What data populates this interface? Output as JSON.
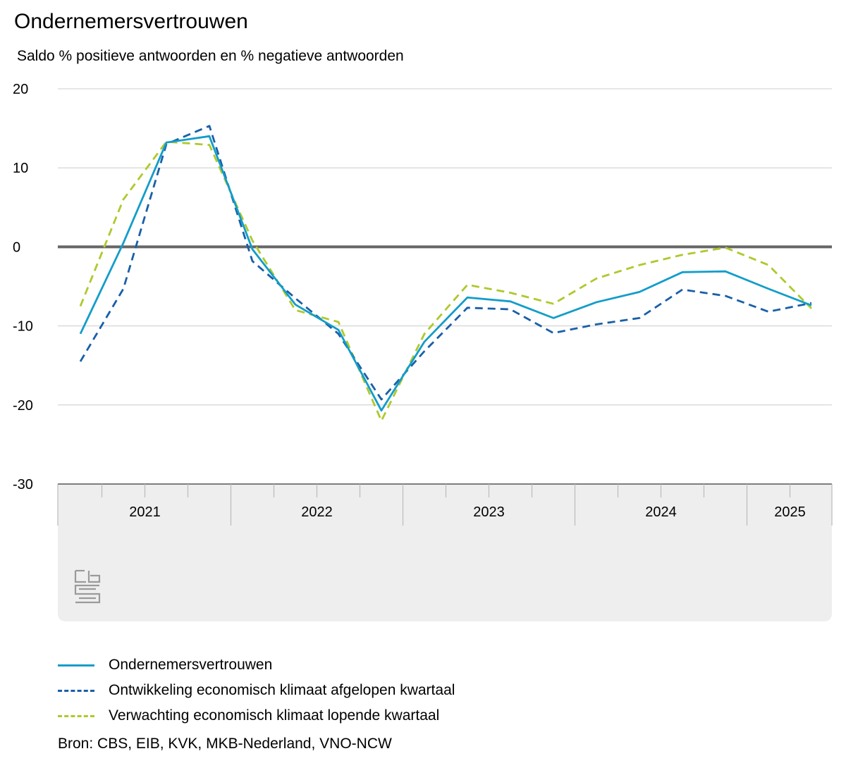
{
  "header": {
    "title": "Ondernemersvertrouwen",
    "subtitle": "Saldo % positieve antwoorden en % negatieve antwoorden"
  },
  "source": "Bron: CBS, EIB, KVK, MKB-Nederland, VNO-NCW",
  "logo": {
    "icon": "cbs-logo-icon"
  },
  "colors": {
    "series": [
      "#139dc9",
      "#1a5fa8",
      "#aec92c"
    ],
    "zero_line": "#666666",
    "grid": "#cccccc",
    "axis_band": "#eeeeee"
  },
  "chart_data": {
    "type": "line",
    "title": "Ondernemersvertrouwen",
    "subtitle": "Saldo % positieve antwoorden en % negatieve antwoorden",
    "xlabel": "",
    "ylabel": "",
    "ylim": [
      -30,
      20
    ],
    "yticks": [
      "20",
      "10",
      "0",
      "-10",
      "-20",
      "-30"
    ],
    "ytick_values": [
      20,
      10,
      0,
      -10,
      -20,
      -30
    ],
    "grid": true,
    "legend_position": "bottom",
    "x": [
      "2021 Q1",
      "2021 Q2",
      "2021 Q3",
      "2021 Q4",
      "2022 Q1",
      "2022 Q2",
      "2022 Q3",
      "2022 Q4",
      "2023 Q1",
      "2023 Q2",
      "2023 Q3",
      "2023 Q4",
      "2024 Q1",
      "2024 Q2",
      "2024 Q3",
      "2024 Q4",
      "2025 Q1",
      "2025 Q2"
    ],
    "x_groups": [
      {
        "label": "2021",
        "quarters": 4
      },
      {
        "label": "2022",
        "quarters": 4
      },
      {
        "label": "2023",
        "quarters": 4
      },
      {
        "label": "2024",
        "quarters": 4
      },
      {
        "label": "2025",
        "quarters": 2
      }
    ],
    "series": [
      {
        "name": "Ondernemersvertrouwen",
        "style": "solid",
        "values": [
          -11,
          0.5,
          13.2,
          14,
          -0.3,
          -7.3,
          -10.5,
          -20.7,
          -12,
          -6.4,
          -6.9,
          -9,
          -7,
          -5.7,
          -3.2,
          -3.1,
          -5.3,
          -7.4
        ]
      },
      {
        "name": "Ontwikkeling economisch klimaat afgelopen kwartaal",
        "style": "dashed",
        "values": [
          -14.5,
          -5.3,
          13,
          15.3,
          -1.8,
          -6.5,
          -11,
          -19.3,
          -13.2,
          -7.7,
          -7.9,
          -10.9,
          -9.8,
          -9,
          -5.4,
          -6.2,
          -8.2,
          -7.1
        ]
      },
      {
        "name": "Verwachting economisch klimaat lopende kwartaal",
        "style": "dashed",
        "values": [
          -7.5,
          6,
          13.3,
          12.9,
          0.8,
          -8,
          -9.5,
          -22,
          -11,
          -4.8,
          -5.8,
          -7.2,
          -4,
          -2.3,
          -1,
          -0.1,
          -2.3,
          -7.8
        ]
      }
    ]
  }
}
